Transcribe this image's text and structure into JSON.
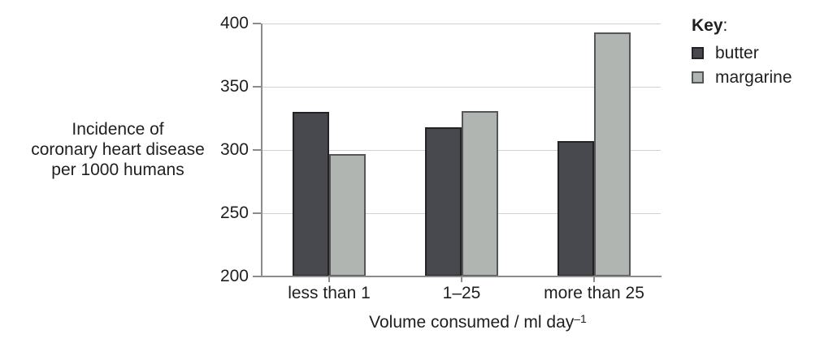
{
  "colors": {
    "background": "#ffffff",
    "text": "#1f1f1f",
    "gridline": "#d2d2d2",
    "axis": "#8c8c8c",
    "butter_fill": "#47494e",
    "butter_border": "#232323",
    "margarine_fill": "#b1b5b2",
    "margarine_border": "#55565a"
  },
  "y_axis_title": "Incidence of\ncoronary heart disease\nper 1000 humans",
  "x_axis_title": {
    "main": "Volume consumed / ml day",
    "superscript": "–1",
    "full": "Volume consumed / ml day^-1"
  },
  "legend": {
    "title_bold": "Key",
    "title_suffix": ":",
    "items": [
      {
        "label": "butter",
        "color": "#47494e",
        "border": "#232323"
      },
      {
        "label": "margarine",
        "color": "#b1b5b2",
        "border": "#55565a"
      }
    ]
  },
  "chart_data": {
    "type": "bar",
    "title": "",
    "xlabel": "Volume consumed / ml day^-1",
    "ylabel": "Incidence of coronary heart disease per 1000 humans",
    "categories": [
      "less than 1",
      "1–25",
      "more than 25"
    ],
    "series": [
      {
        "name": "butter",
        "color": "#47494e",
        "border": "#232323",
        "values": [
          330,
          318,
          307
        ]
      },
      {
        "name": "margarine",
        "color": "#b1b5b2",
        "border": "#55565a",
        "values": [
          297,
          331,
          393
        ]
      }
    ],
    "ylim": [
      200,
      400
    ],
    "yticks": [
      200,
      250,
      300,
      350,
      400
    ],
    "grid": true,
    "legend_position": "right"
  }
}
